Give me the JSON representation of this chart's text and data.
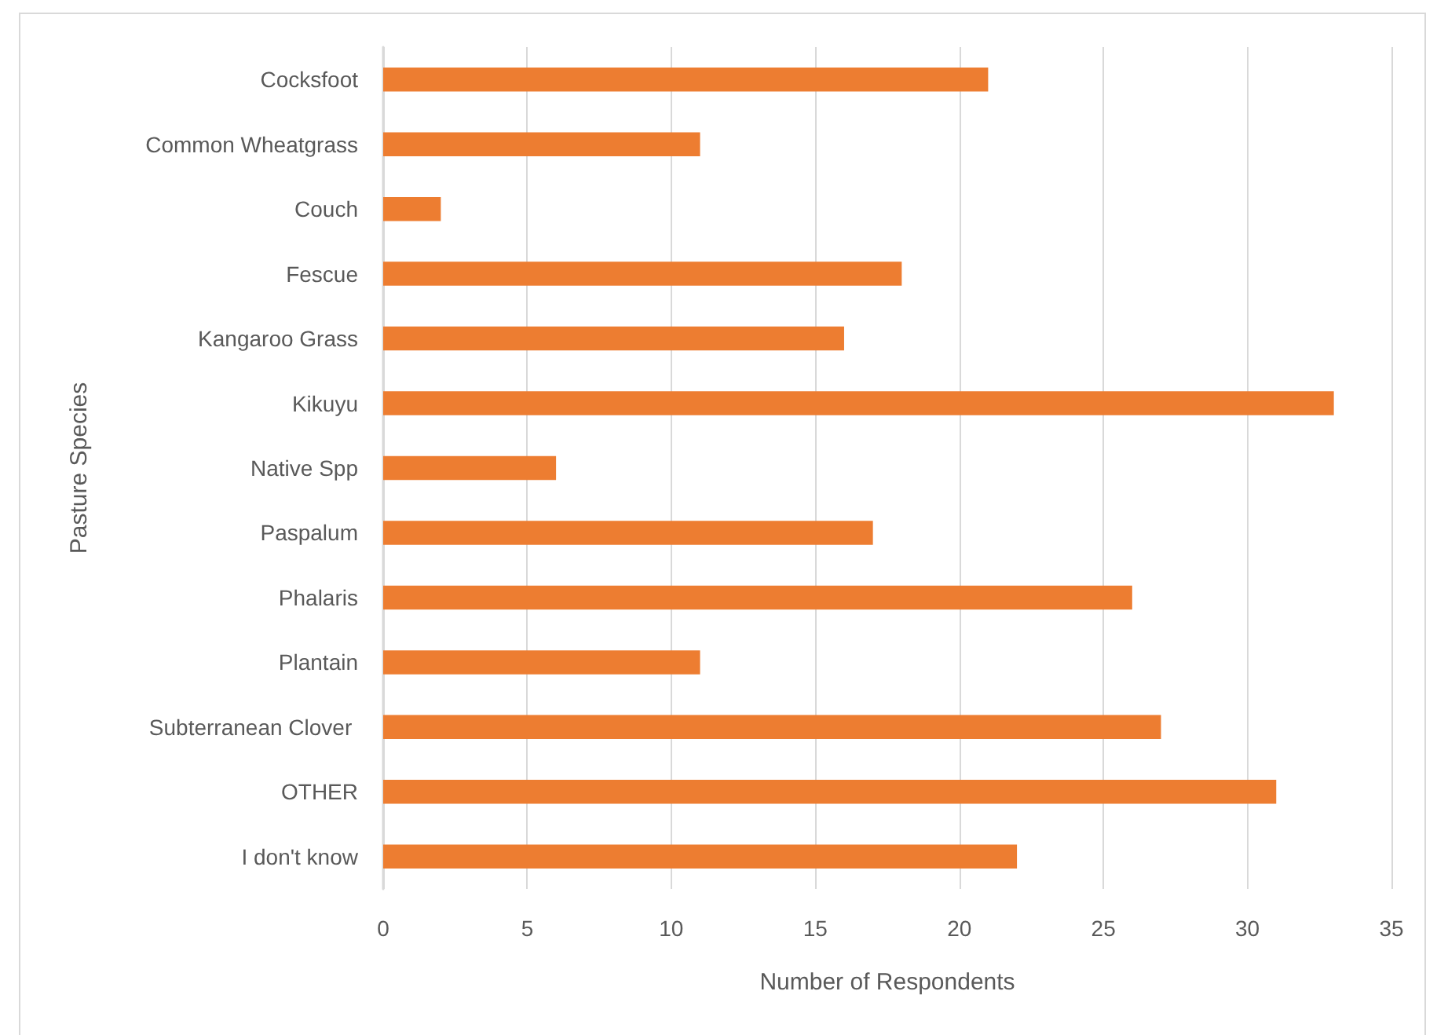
{
  "chart_data": {
    "type": "bar",
    "orientation": "horizontal",
    "xlabel": "Number of Respondents",
    "ylabel": "Pasture Species",
    "categories": [
      "Cocksfoot",
      "Common Wheatgrass",
      "Couch",
      "Fescue",
      "Kangaroo Grass",
      "Kikuyu",
      "Native Spp",
      "Paspalum",
      "Phalaris",
      "Plantain",
      "Subterranean Clover ",
      "OTHER",
      "I don't know"
    ],
    "values": [
      21,
      11,
      2,
      18,
      16,
      33,
      6,
      17,
      26,
      11,
      27,
      31,
      22
    ],
    "color": "#ed7d31",
    "xlim": [
      0,
      35
    ],
    "xticks": [
      0,
      5,
      10,
      15,
      20,
      25,
      30,
      35
    ],
    "grid": "x"
  }
}
